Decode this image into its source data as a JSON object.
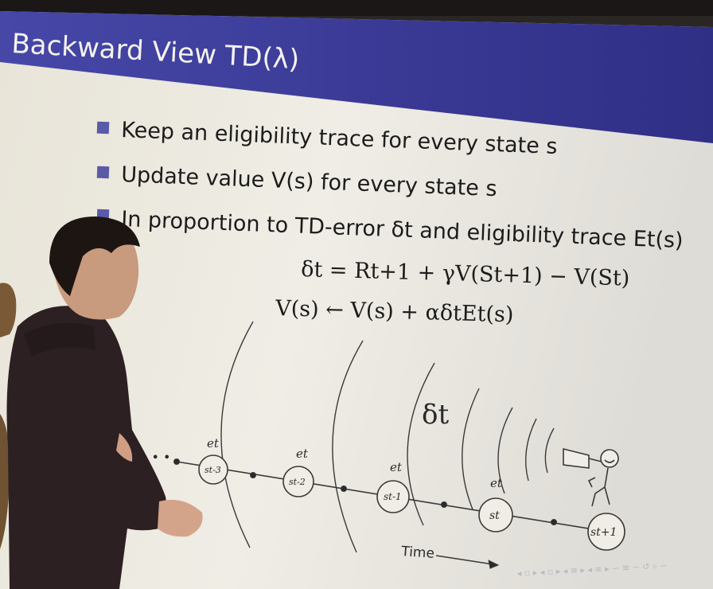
{
  "slide": {
    "title": "Backward View TD(λ)",
    "bullets": [
      "Keep an eligibility trace for every state s",
      "Update value V(s) for every state s",
      "In proportion to TD-error δt and eligibility trace Et(s)"
    ],
    "equations": [
      "δt = Rt+1 + γV(St+1) − V(St)",
      "V(s) ← V(s) + αδtEt(s)"
    ]
  },
  "diagram": {
    "leading_dots": "• • •",
    "states": [
      "st-3",
      "st-2",
      "st-1",
      "st",
      "st+1"
    ],
    "trace_label": "et",
    "delta_label": "δt",
    "time_label": "Time"
  },
  "navbar": {
    "text": "◂ ▫ ▸ ◂ ▫ ▸ ◂ ≡ ▸ ◂ ≡ ▸ ∽ ≡ ∽ ↺ ⌕ ∽"
  },
  "colors": {
    "slide_bg": "#eceae0",
    "title_bar": "#3e3fa0",
    "bullet": "#5a5aa8",
    "shirt": "#2d2022"
  }
}
